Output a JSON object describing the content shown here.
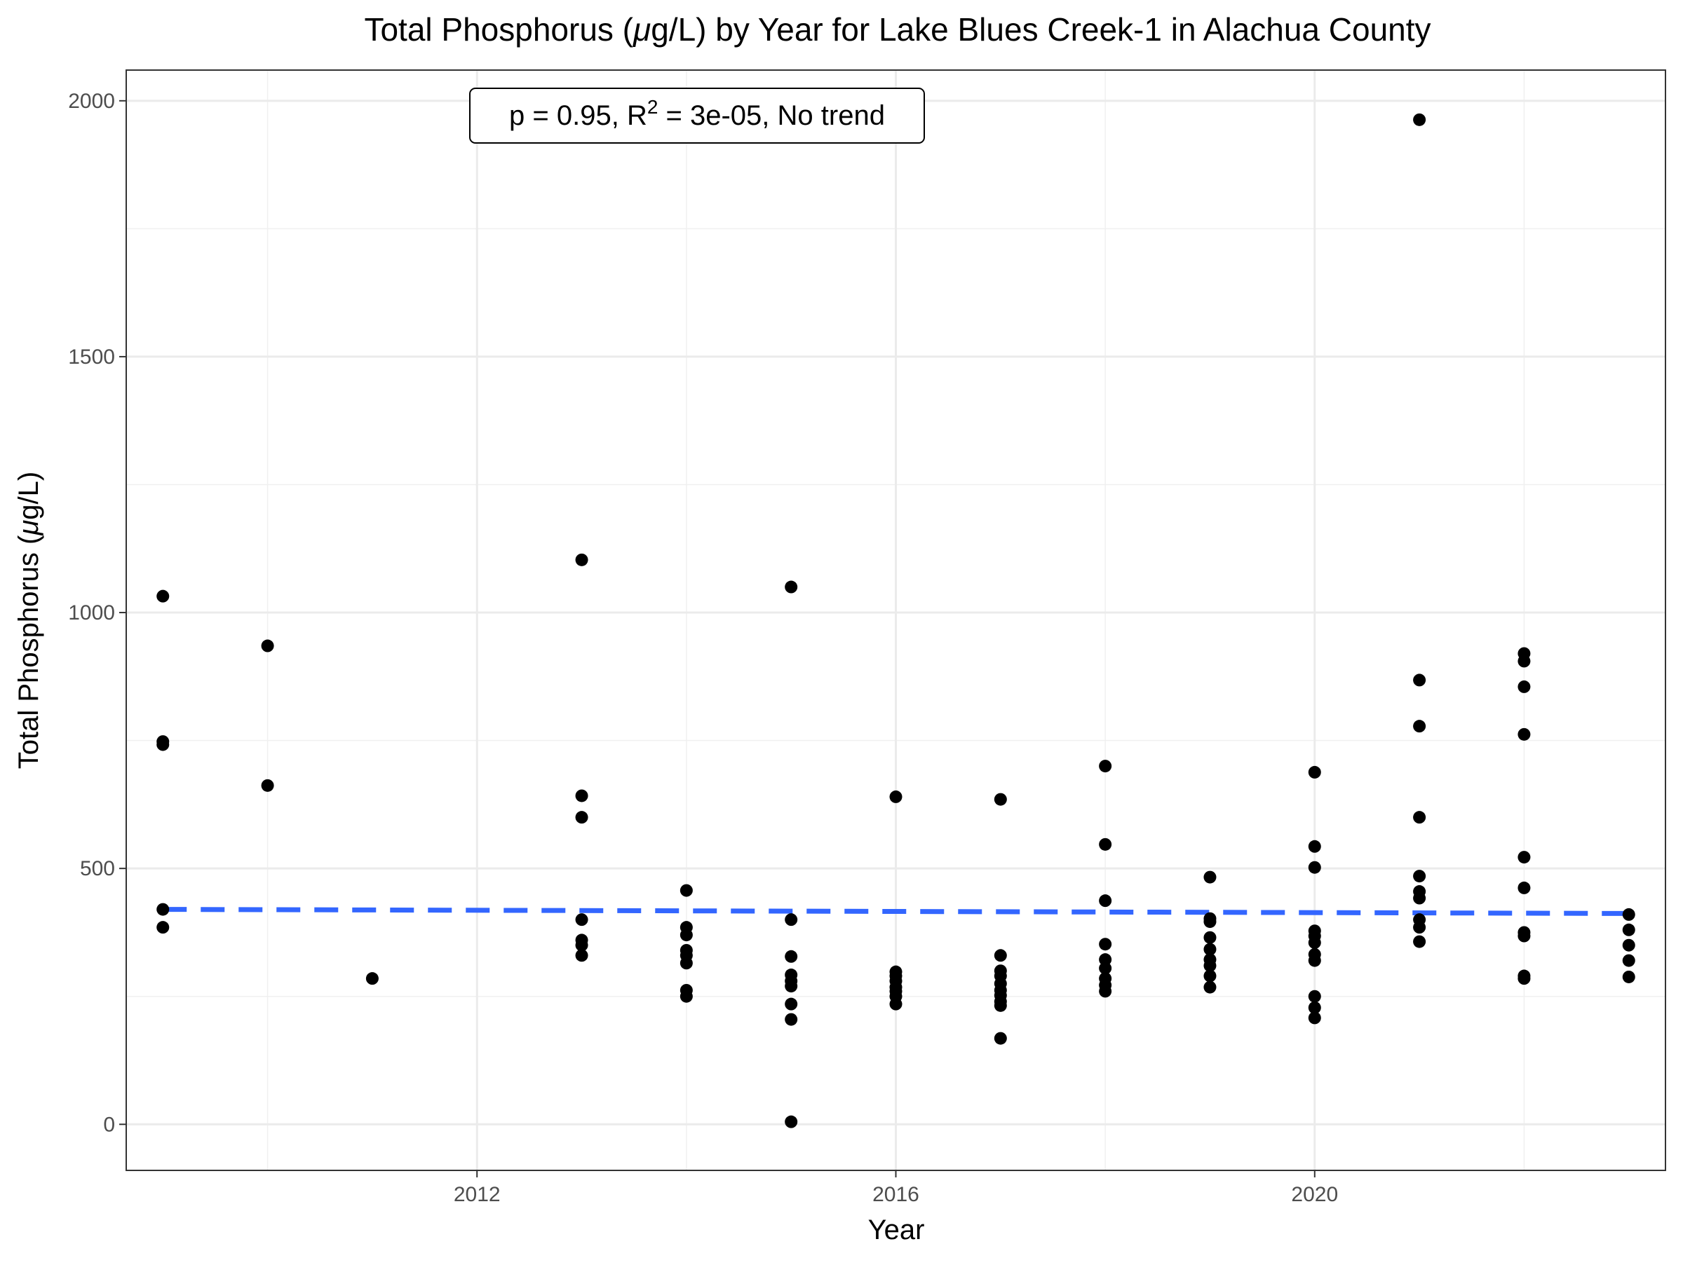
{
  "chart_data": {
    "type": "scatter",
    "title_prefix": "Total Phosphorus (",
    "title_mu": "μ",
    "title_suffix": "g/L) by Year for Lake Blues Creek-1 in Alachua County",
    "xlabel": "Year",
    "ylabel_prefix": "Total Phosphorus (",
    "ylabel_mu": "μ",
    "ylabel_suffix": "g/L)",
    "annotation": {
      "p_text": "p = 0.95, R",
      "sup": "2",
      "rest": " = 3e-05, No trend"
    },
    "xlim": [
      2008.65,
      2023.35
    ],
    "ylim": [
      -90,
      2060
    ],
    "x_ticks": [
      2012,
      2016,
      2020
    ],
    "x_tick_labels": [
      "2012",
      "2016",
      "2020"
    ],
    "y_ticks": [
      0,
      500,
      1000,
      1500,
      2000
    ],
    "y_tick_labels": [
      "0",
      "500",
      "1000",
      "1500",
      "2000"
    ],
    "grid": true,
    "trend_line": {
      "x": [
        2009,
        2023
      ],
      "y": [
        420,
        412
      ],
      "color": "#3366FF",
      "style": "dashed"
    },
    "point_color": "#000000",
    "points": [
      {
        "year": 2009,
        "values": [
          1032,
          748,
          742,
          420,
          385
        ]
      },
      {
        "year": 2010,
        "values": [
          935,
          662
        ]
      },
      {
        "year": 2011,
        "values": [
          285
        ]
      },
      {
        "year": 2013,
        "values": [
          1103,
          642,
          600,
          400,
          360,
          350,
          330
        ]
      },
      {
        "year": 2014,
        "values": [
          457,
          385,
          370,
          340,
          330,
          315,
          262,
          250
        ]
      },
      {
        "year": 2015,
        "values": [
          1050,
          400,
          328,
          292,
          280,
          270,
          235,
          205,
          5
        ]
      },
      {
        "year": 2016,
        "values": [
          640,
          298,
          290,
          280,
          268,
          260,
          250,
          235
        ]
      },
      {
        "year": 2017,
        "values": [
          635,
          330,
          300,
          290,
          275,
          262,
          252,
          240,
          232,
          168
        ]
      },
      {
        "year": 2018,
        "values": [
          700,
          547,
          437,
          352,
          322,
          305,
          285,
          272,
          260
        ]
      },
      {
        "year": 2019,
        "values": [
          483,
          402,
          396,
          365,
          342,
          322,
          310,
          290,
          268
        ]
      },
      {
        "year": 2020,
        "values": [
          688,
          543,
          502,
          378,
          368,
          355,
          332,
          320,
          250,
          228,
          208
        ]
      },
      {
        "year": 2021,
        "values": [
          1963,
          868,
          778,
          600,
          485,
          455,
          442,
          400,
          385,
          357
        ]
      },
      {
        "year": 2022,
        "values": [
          920,
          905,
          855,
          762,
          522,
          462,
          375,
          368,
          290,
          285
        ]
      },
      {
        "year": 2023,
        "values": [
          410,
          380,
          350,
          320,
          288
        ]
      }
    ]
  }
}
